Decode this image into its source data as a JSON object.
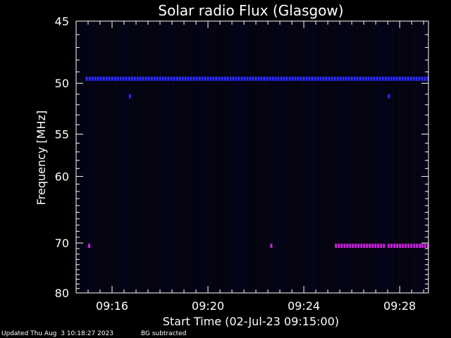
{
  "chart_data": {
    "type": "heatmap",
    "title": "Solar radio Flux (Glasgow)",
    "xlabel": "Start Time (02-Jul-23 09:15:00)",
    "ylabel": "Frequency [MHz]",
    "x_tick_labels": [
      "09:16",
      "09:20",
      "09:24",
      "09:28"
    ],
    "x_tick_minutes": [
      1,
      5,
      9,
      13
    ],
    "x_range_minutes": [
      -0.5,
      14.2
    ],
    "y_tick_labels": [
      "45",
      "50",
      "55",
      "60",
      "70",
      "80"
    ],
    "y_tick_values": [
      45,
      50,
      55,
      60,
      70,
      80
    ],
    "y_range": [
      45,
      80
    ],
    "y_scale": "reciprocal",
    "background_color": "#000000",
    "axis_color": "#ffffff",
    "series": [
      {
        "frequency_mhz": 49.6,
        "color": "#2a2aff",
        "segments": [
          [
            -0.1,
            14.2
          ]
        ]
      },
      {
        "frequency_mhz": 51.2,
        "color": "#2a2aff",
        "segments": [
          [
            1.7,
            1.8
          ],
          [
            12.5,
            12.6
          ]
        ]
      },
      {
        "frequency_mhz": 70.5,
        "color": "#cc22dd",
        "segments": [
          [
            0.0,
            0.1
          ],
          [
            7.6,
            7.7
          ],
          [
            10.3,
            12.3
          ],
          [
            12.5,
            13.8
          ],
          [
            13.9,
            14.2
          ]
        ]
      }
    ]
  },
  "footer": {
    "updated": "Updated Thu Aug  3 10:18:27 2023",
    "note": "BG subtracted"
  }
}
